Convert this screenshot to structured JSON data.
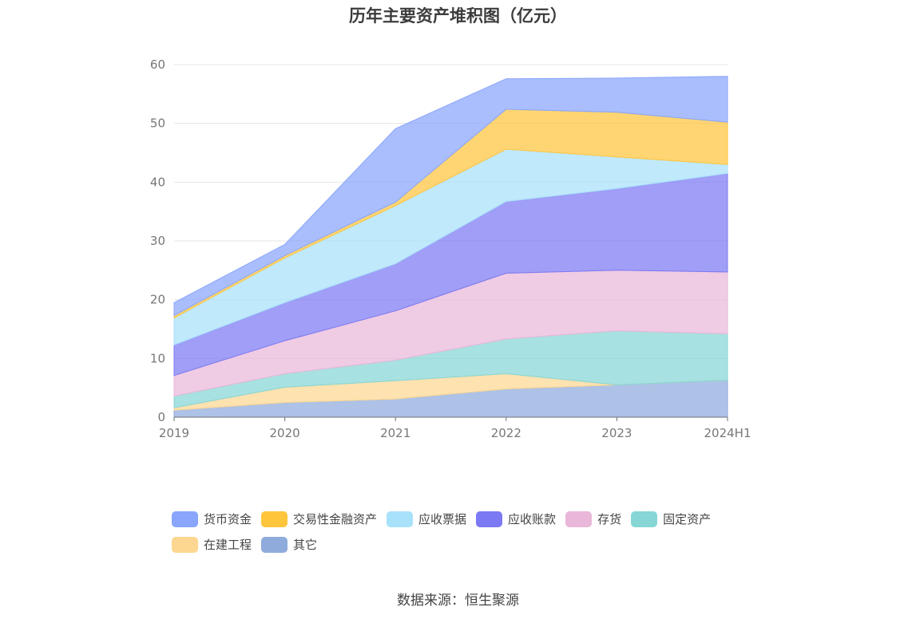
{
  "chart_data": {
    "type": "area",
    "stacked": true,
    "title": "历年主要资产堆积图（亿元）",
    "x": [
      "2019",
      "2020",
      "2021",
      "2022",
      "2023",
      "2024H1"
    ],
    "yticks": [
      "0",
      "10",
      "20",
      "30",
      "40",
      "50",
      "60"
    ],
    "ylim": [
      0,
      60
    ],
    "grid": true,
    "legend_position": "bottom",
    "series": [
      {
        "name": "其它",
        "color": "#8eabdc",
        "values": [
          1.2,
          2.5,
          3.1,
          4.8,
          5.5,
          6.3
        ]
      },
      {
        "name": "在建工程",
        "color": "#fdd792",
        "values": [
          0.4,
          2.6,
          3.1,
          2.6,
          0,
          0
        ]
      },
      {
        "name": "固定资产",
        "color": "#87d6d6",
        "values": [
          2.0,
          2.3,
          3.5,
          5.9,
          9.2,
          7.9
        ]
      },
      {
        "name": "存货",
        "color": "#e9b7d9",
        "values": [
          3.5,
          5.6,
          8.4,
          11.2,
          10.3,
          10.5
        ]
      },
      {
        "name": "应收账款",
        "color": "#7b79f3",
        "values": [
          5.2,
          6.5,
          8.0,
          12.2,
          13.9,
          16.8
        ]
      },
      {
        "name": "应收票据",
        "color": "#a8e1fa",
        "values": [
          4.6,
          7.6,
          9.9,
          8.9,
          5.4,
          1.5
        ]
      },
      {
        "name": "交易性金融资产",
        "color": "#ffc53d",
        "values": [
          0.4,
          0.4,
          0.6,
          6.8,
          7.6,
          7.2
        ]
      },
      {
        "name": "货币资金",
        "color": "#89a5fc",
        "values": [
          2.2,
          1.9,
          12.5,
          5.2,
          5.8,
          7.8
        ]
      }
    ],
    "legend_order": [
      "货币资金",
      "交易性金融资产",
      "应收票据",
      "应收账款",
      "存货",
      "固定资产",
      "在建工程",
      "其它"
    ],
    "source": "数据来源：恒生聚源"
  }
}
